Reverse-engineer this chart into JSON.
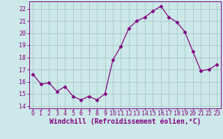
{
  "x": [
    0,
    1,
    2,
    3,
    4,
    5,
    6,
    7,
    8,
    9,
    10,
    11,
    12,
    13,
    14,
    15,
    16,
    17,
    18,
    19,
    20,
    21,
    22,
    23
  ],
  "y": [
    16.6,
    15.8,
    15.9,
    15.2,
    15.6,
    14.8,
    14.5,
    14.8,
    14.5,
    15.0,
    17.8,
    18.9,
    20.4,
    21.0,
    21.3,
    21.8,
    22.2,
    21.3,
    20.9,
    20.1,
    18.5,
    16.9,
    17.0,
    17.4
  ],
  "line_color": "#800080",
  "marker": "D",
  "marker_size": 2.5,
  "bg_color": "#cce8e8",
  "grid_color": "#aacccc",
  "ylim": [
    13.8,
    22.6
  ],
  "yticks": [
    14,
    15,
    16,
    17,
    18,
    19,
    20,
    21,
    22
  ],
  "xlim": [
    -0.5,
    23.5
  ],
  "xlabel": "Windchill (Refroidissement éolien,°C)",
  "xlabel_color": "#800080",
  "tick_color": "#800080",
  "axis_color": "#800080",
  "label_fontsize": 7.0,
  "tick_fontsize": 6.0
}
